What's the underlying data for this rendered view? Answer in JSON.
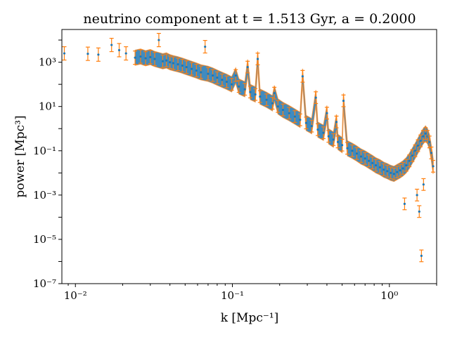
{
  "chart_data": {
    "type": "scatter",
    "title": "neutrino component at t = 1.513 Gyr, a = 0.2000",
    "xlabel": "k [Mpc⁻¹]",
    "ylabel": "power [Mpc³]",
    "xscale": "log",
    "yscale": "log",
    "xlim": [
      0.0082,
      2.0
    ],
    "ylim": [
      1e-07,
      30000
    ],
    "x_ticks": [
      0.01,
      0.1,
      1
    ],
    "x_tick_labels": [
      "10⁻²",
      "10⁻¹",
      "10⁰"
    ],
    "y_ticks": [
      1e-07,
      1e-05,
      0.001,
      0.1,
      10,
      1000
    ],
    "y_tick_labels": [
      "10⁻⁷",
      "10⁻⁵",
      "10⁻³",
      "10⁻¹",
      "10¹",
      "10³"
    ],
    "grid": false,
    "series": [
      {
        "color": "#1f77b4",
        "error_color": "#ff7f0e",
        "points": [
          [
            0.0085,
            2500,
            0.25
          ],
          [
            0.012,
            2400,
            0.25
          ],
          [
            0.014,
            2200,
            0.25
          ],
          [
            0.017,
            6000,
            0.25
          ],
          [
            0.019,
            3500,
            0.25
          ],
          [
            0.021,
            2500,
            0.25
          ],
          [
            0.024,
            1600,
            0.25
          ],
          [
            0.026,
            1800,
            0.25
          ],
          [
            0.028,
            1500,
            0.25
          ],
          [
            0.03,
            1700,
            0.25
          ],
          [
            0.032,
            1400,
            0.25
          ],
          [
            0.034,
            10000,
            0.25
          ],
          [
            0.036,
            1100,
            0.2
          ],
          [
            0.038,
            1200,
            0.2
          ],
          [
            0.04,
            1000,
            0.2
          ],
          [
            0.042,
            900,
            0.2
          ],
          [
            0.045,
            800,
            0.2
          ],
          [
            0.048,
            700,
            0.2
          ],
          [
            0.051,
            600,
            0.2
          ],
          [
            0.055,
            500,
            0.2
          ],
          [
            0.059,
            420,
            0.2
          ],
          [
            0.063,
            350,
            0.2
          ],
          [
            0.067,
            5000,
            0.2
          ],
          [
            0.07,
            300,
            0.2
          ],
          [
            0.075,
            250,
            0.15
          ],
          [
            0.08,
            200,
            0.15
          ],
          [
            0.086,
            160,
            0.15
          ],
          [
            0.092,
            130,
            0.15
          ],
          [
            0.099,
            100,
            0.15
          ],
          [
            0.105,
            250,
            0.15
          ],
          [
            0.11,
            80,
            0.15
          ],
          [
            0.12,
            60,
            0.15
          ],
          [
            0.125,
            600,
            0.15
          ],
          [
            0.13,
            45,
            0.15
          ],
          [
            0.14,
            35,
            0.15
          ],
          [
            0.145,
            1400,
            0.15
          ],
          [
            0.15,
            28,
            0.15
          ],
          [
            0.165,
            20,
            0.15
          ],
          [
            0.18,
            14,
            0.15
          ],
          [
            0.185,
            40,
            0.15
          ],
          [
            0.195,
            10,
            0.15
          ],
          [
            0.21,
            7,
            0.15
          ],
          [
            0.23,
            5,
            0.15
          ],
          [
            0.25,
            3.5,
            0.15
          ],
          [
            0.27,
            2.5,
            0.15
          ],
          [
            0.28,
            230,
            0.15
          ],
          [
            0.295,
            1.8,
            0.15
          ],
          [
            0.32,
            1.3,
            0.15
          ],
          [
            0.34,
            25,
            0.15
          ],
          [
            0.35,
            0.9,
            0.15
          ],
          [
            0.38,
            0.65,
            0.15
          ],
          [
            0.4,
            5,
            0.15
          ],
          [
            0.41,
            0.45,
            0.15
          ],
          [
            0.44,
            0.32,
            0.15
          ],
          [
            0.46,
            2,
            0.15
          ],
          [
            0.47,
            0.25,
            0.15
          ],
          [
            0.5,
            0.18,
            0.15
          ],
          [
            0.51,
            18,
            0.15
          ],
          [
            0.54,
            0.13,
            0.15
          ],
          [
            0.58,
            0.1,
            0.15
          ],
          [
            0.62,
            0.075,
            0.15
          ],
          [
            0.66,
            0.055,
            0.15
          ],
          [
            0.7,
            0.045,
            0.15
          ],
          [
            0.74,
            0.035,
            0.15
          ],
          [
            0.78,
            0.028,
            0.15
          ],
          [
            0.82,
            0.022,
            0.15
          ],
          [
            0.87,
            0.018,
            0.15
          ],
          [
            0.92,
            0.014,
            0.15
          ],
          [
            0.97,
            0.012,
            0.15
          ],
          [
            1.02,
            0.01,
            0.15
          ],
          [
            1.07,
            0.009,
            0.15
          ],
          [
            1.12,
            0.011,
            0.15
          ],
          [
            1.17,
            0.013,
            0.15
          ],
          [
            1.22,
            0.016,
            0.15
          ],
          [
            1.28,
            0.022,
            0.15
          ],
          [
            1.34,
            0.035,
            0.15
          ],
          [
            1.4,
            0.06,
            0.15
          ],
          [
            1.46,
            0.1,
            0.15
          ],
          [
            1.52,
            0.17,
            0.15
          ],
          [
            1.58,
            0.28,
            0.15
          ],
          [
            1.64,
            0.45,
            0.15
          ],
          [
            1.7,
            0.6,
            0.15
          ],
          [
            1.75,
            0.45,
            0.15
          ],
          [
            1.8,
            0.25,
            0.15
          ],
          [
            1.85,
            0.08,
            0.15
          ],
          [
            1.9,
            0.02,
            0.15
          ],
          [
            1.25,
            0.0004,
            0.15
          ],
          [
            1.55,
            0.00018,
            0.15
          ],
          [
            1.6,
            1.8e-06,
            0.15
          ],
          [
            1.5,
            0.001,
            0.15
          ],
          [
            1.65,
            0.003,
            0.15
          ]
        ]
      }
    ]
  }
}
